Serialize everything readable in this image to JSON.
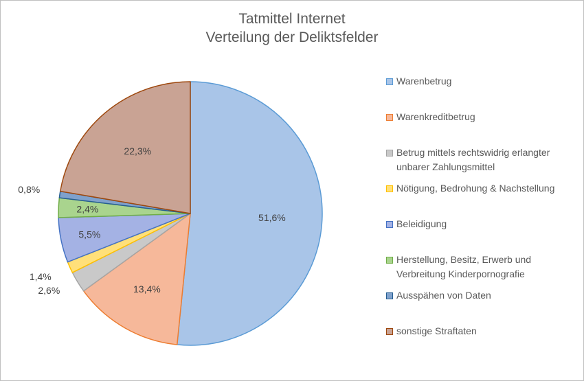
{
  "chart_data": {
    "type": "pie",
    "title": [
      "Tatmittel Internet",
      "Verteilung der Deliktsfelder"
    ],
    "legend_position": "right",
    "slices": [
      {
        "name": "Warenbetrug",
        "value": 51.6,
        "label": "51,6%",
        "fill": "#a9c5e8",
        "stroke": "#5b9bd5"
      },
      {
        "name": "Warenkreditbetrug",
        "value": 13.4,
        "label": "13,4%",
        "fill": "#f6b89a",
        "stroke": "#ed7d31"
      },
      {
        "name": "Betrug mittels rechtswidrig erlangter\nunbarer Zahlungsmittel",
        "value": 2.6,
        "label": "2,6%",
        "fill": "#c9c9c9",
        "stroke": "#a5a5a5"
      },
      {
        "name": "Nötigung, Bedrohung & Nachstellung",
        "value": 1.4,
        "label": "1,4%",
        "fill": "#ffe07a",
        "stroke": "#ffc000"
      },
      {
        "name": "Beleidigung",
        "value": 5.5,
        "label": "5,5%",
        "fill": "#a4b2e4",
        "stroke": "#4472c4"
      },
      {
        "name": "Herstellung, Besitz, Erwerb und\nVerbreitung Kinderpornografie",
        "value": 2.4,
        "label": "2,4%",
        "fill": "#a9d48e",
        "stroke": "#70ad47"
      },
      {
        "name": "Ausspähen von Daten",
        "value": 0.8,
        "label": "0,8%",
        "fill": "#7fa1cc",
        "stroke": "#255e91"
      },
      {
        "name": "sonstige Straftaten",
        "value": 22.3,
        "label": "22,3%",
        "fill": "#c9a394",
        "stroke": "#9e480e"
      }
    ]
  }
}
